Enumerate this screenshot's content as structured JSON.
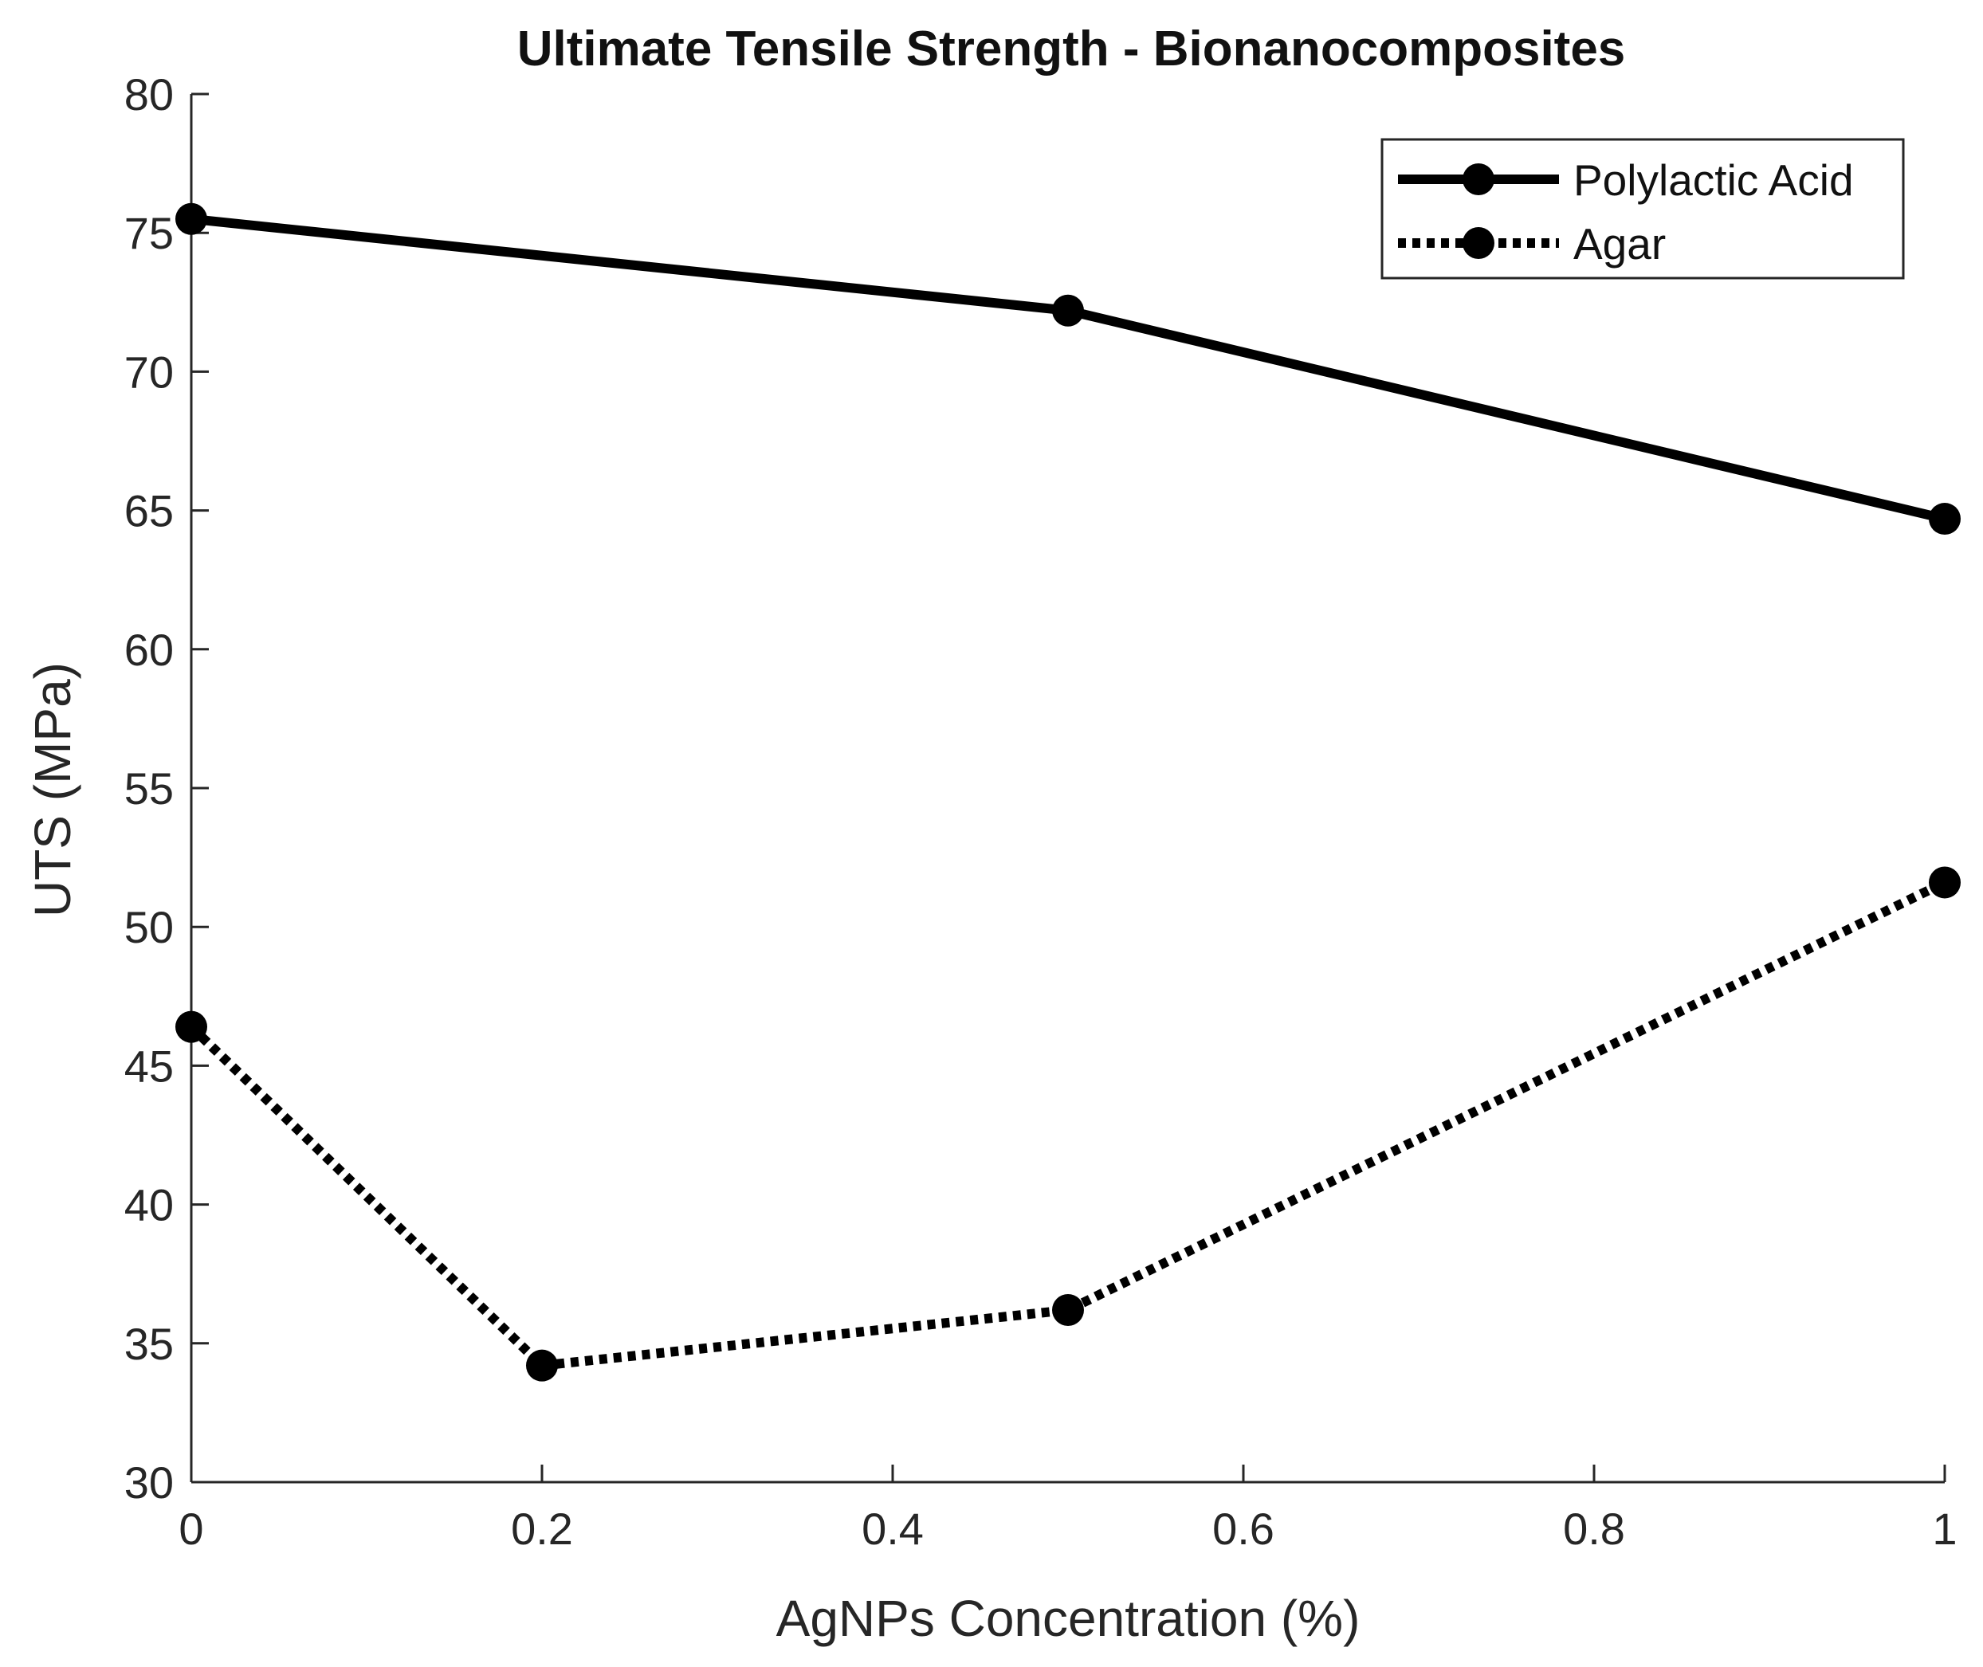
{
  "chart_data": {
    "type": "line",
    "title": "Ultimate Tensile Strength - Bionanocomposites",
    "xlabel": "AgNPs Concentration (%)",
    "ylabel": "UTS (MPa)",
    "xlim": [
      0,
      1
    ],
    "ylim": [
      30,
      80
    ],
    "xticks": [
      0,
      0.2,
      0.4,
      0.6,
      0.8,
      1
    ],
    "xtick_labels": [
      "0",
      "0.2",
      "0.4",
      "0.6",
      "0.8",
      "1"
    ],
    "yticks": [
      30,
      35,
      40,
      45,
      50,
      55,
      60,
      65,
      70,
      75,
      80
    ],
    "ytick_labels": [
      "30",
      "35",
      "40",
      "45",
      "50",
      "55",
      "60",
      "65",
      "70",
      "75",
      "80"
    ],
    "grid": false,
    "legend_position": "top-right",
    "series": [
      {
        "name": "Polylactic Acid",
        "style": "solid",
        "marker": "circle",
        "color": "#000000",
        "x": [
          0,
          0.5,
          1
        ],
        "y": [
          75.5,
          72.2,
          64.7
        ]
      },
      {
        "name": "Agar",
        "style": "dotted",
        "marker": "circle",
        "color": "#000000",
        "x": [
          0,
          0.2,
          0.5,
          1
        ],
        "y": [
          46.4,
          34.2,
          36.2,
          51.6
        ]
      }
    ]
  }
}
